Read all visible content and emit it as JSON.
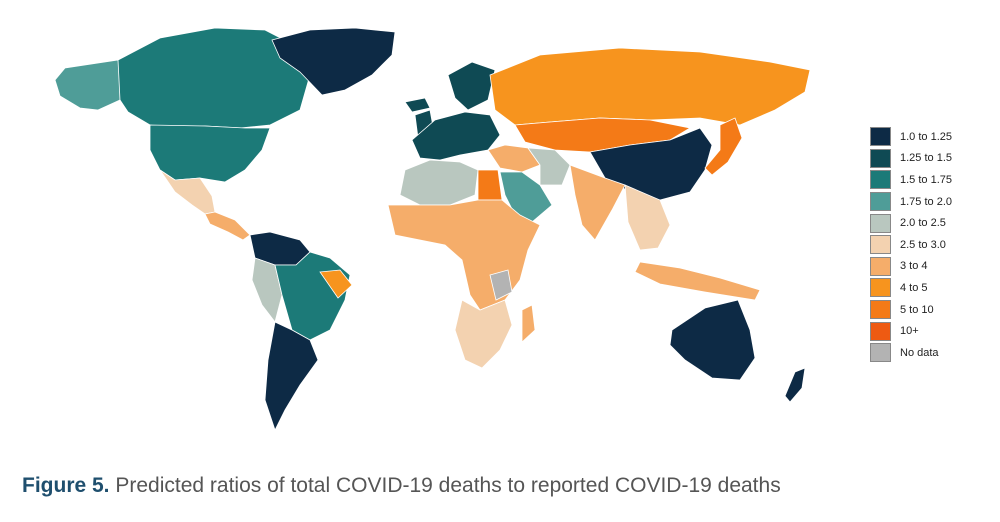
{
  "caption": {
    "figure_label": "Figure 5.",
    "text": " Predicted ratios of total COVID-19 deaths to reported COVID-19 deaths"
  },
  "legend": [
    {
      "label": "1.0 to 1.25",
      "color": "#0d2a45"
    },
    {
      "label": "1.25 to 1.5",
      "color": "#0f4a54"
    },
    {
      "label": "1.5 to 1.75",
      "color": "#1c7a78"
    },
    {
      "label": "1.75 to 2.0",
      "color": "#4f9d98"
    },
    {
      "label": "2.0 to 2.5",
      "color": "#b9c7bf"
    },
    {
      "label": "2.5 to 3.0",
      "color": "#f3d2b0"
    },
    {
      "label": "3 to 4",
      "color": "#f5ad6a"
    },
    {
      "label": "4 to 5",
      "color": "#f7941e"
    },
    {
      "label": "5 to 10",
      "color": "#f47a17"
    },
    {
      "label": "10+",
      "color": "#ee5a12"
    },
    {
      "label": "No data",
      "color": "#b3b3b3"
    }
  ],
  "regions": [
    {
      "name": "alaska",
      "color": "#4f9d98"
    },
    {
      "name": "canada",
      "color": "#1c7a78"
    },
    {
      "name": "usa",
      "color": "#1c7a78"
    },
    {
      "name": "mexico",
      "color": "#f3d2b0"
    },
    {
      "name": "central-america",
      "color": "#f5ad6a"
    },
    {
      "name": "greenland",
      "color": "#0d2a45"
    },
    {
      "name": "colombia-venezuela",
      "color": "#0d2a45"
    },
    {
      "name": "brazil",
      "color": "#1c7a78"
    },
    {
      "name": "peru",
      "color": "#b9c7bf"
    },
    {
      "name": "brazil-northeast",
      "color": "#f7941e"
    },
    {
      "name": "southern-cone",
      "color": "#0d2a45"
    },
    {
      "name": "europe",
      "color": "#0f4a54"
    },
    {
      "name": "scandinavia",
      "color": "#0f4a54"
    },
    {
      "name": "iceland",
      "color": "#0f4a54"
    },
    {
      "name": "uk-ireland",
      "color": "#0f4a54"
    },
    {
      "name": "russia",
      "color": "#f7941e"
    },
    {
      "name": "kazakhstan-mongolia",
      "color": "#f47a17"
    },
    {
      "name": "china",
      "color": "#0d2a45"
    },
    {
      "name": "japan",
      "color": "#f47a17"
    },
    {
      "name": "middle-east",
      "color": "#f5ad6a"
    },
    {
      "name": "iran",
      "color": "#b9c7bf"
    },
    {
      "name": "arabia",
      "color": "#4f9d98"
    },
    {
      "name": "egypt",
      "color": "#f47a17"
    },
    {
      "name": "north-africa",
      "color": "#b9c7bf"
    },
    {
      "name": "sub-saharan-africa",
      "color": "#f5ad6a"
    },
    {
      "name": "southern-africa",
      "color": "#f3d2b0"
    },
    {
      "name": "dr-congo",
      "color": "#b3b3b3"
    },
    {
      "name": "madagascar",
      "color": "#f5ad6a"
    },
    {
      "name": "india",
      "color": "#f5ad6a"
    },
    {
      "name": "southeast-asia",
      "color": "#f3d2b0"
    },
    {
      "name": "indonesia",
      "color": "#f5ad6a"
    },
    {
      "name": "australia",
      "color": "#0d2a45"
    },
    {
      "name": "new-zealand",
      "color": "#0d2a45"
    }
  ]
}
